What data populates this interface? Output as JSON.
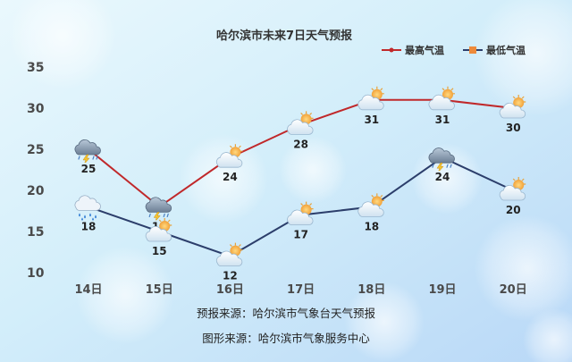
{
  "chart_data": {
    "type": "line",
    "title": "哈尔滨市未来7日天气预报",
    "categories": [
      "14日",
      "15日",
      "16日",
      "17日",
      "18日",
      "19日",
      "20日"
    ],
    "series": [
      {
        "name": "最高气温",
        "color": "#c0282a",
        "values": [
          25,
          18,
          24,
          28,
          31,
          31,
          30
        ],
        "icons": [
          "thunderstorm-icon",
          "thunderstorm-icon",
          "partly-sunny-icon",
          "partly-sunny-icon",
          "partly-sunny-icon",
          "partly-sunny-icon",
          "partly-sunny-icon"
        ]
      },
      {
        "name": "最低气温",
        "color": "#2c3e6b",
        "marker_color": "#ee8a3a",
        "values": [
          18,
          15,
          12,
          17,
          18,
          24,
          20
        ],
        "icons": [
          "rain-icon",
          "partly-sunny-icon",
          "partly-sunny-icon",
          "partly-sunny-icon",
          "partly-sunny-icon",
          "thunderstorm-icon",
          "partly-sunny-icon"
        ]
      }
    ],
    "ylim": [
      10,
      35
    ],
    "yticks": [
      10,
      15,
      20,
      25,
      30,
      35
    ],
    "grid": false,
    "legend": "top-right"
  },
  "footer": {
    "forecast_source": "预报来源：哈尔滨市气象台天气预报",
    "graphic_source": "图形来源：哈尔滨市气象服务中心"
  }
}
